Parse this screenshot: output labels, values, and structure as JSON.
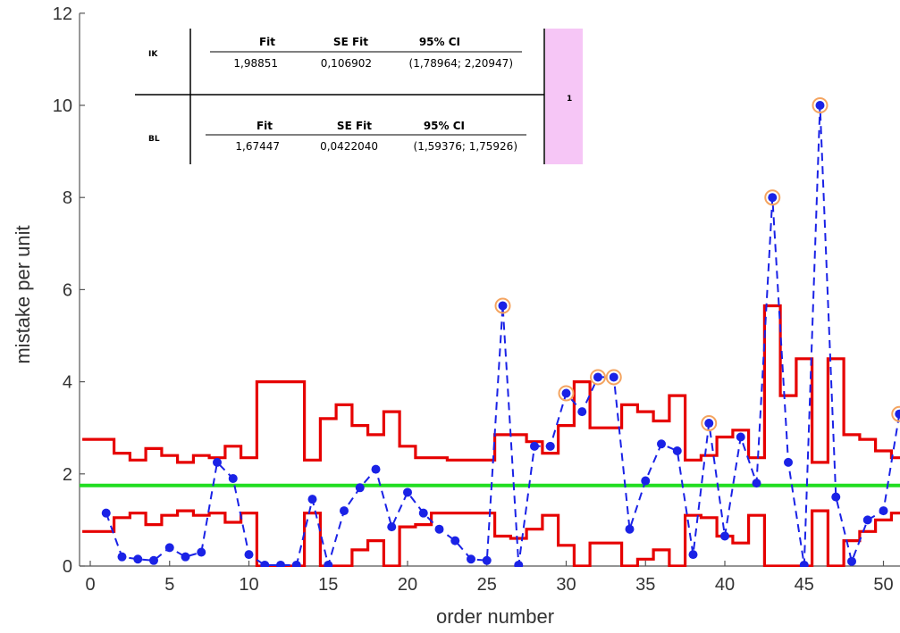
{
  "chart_data": {
    "type": "line",
    "xlabel": "order number",
    "ylabel": "mistake per unit",
    "xlim": [
      -0.5,
      51.3
    ],
    "ylim": [
      0,
      12
    ],
    "x_ticks": [
      "0",
      "5",
      "10",
      "15",
      "20",
      "25",
      "30",
      "35",
      "40",
      "45",
      "50"
    ],
    "y_ticks": [
      "0",
      "2",
      "4",
      "6",
      "8",
      "10",
      "12"
    ],
    "center_line": {
      "value": 1.75,
      "color": "#22dd22"
    },
    "data_series": {
      "color": "#1a22e6",
      "points": [
        [
          1,
          1.15
        ],
        [
          2,
          0.2
        ],
        [
          3,
          0.15
        ],
        [
          4,
          0.12
        ],
        [
          5,
          0.4
        ],
        [
          6,
          0.2
        ],
        [
          7,
          0.3
        ],
        [
          8,
          2.25
        ],
        [
          9,
          1.9
        ],
        [
          10,
          0.25
        ],
        [
          11,
          0.02
        ],
        [
          12,
          0.02
        ],
        [
          13,
          0.02
        ],
        [
          14,
          1.45
        ],
        [
          15,
          0.02
        ],
        [
          16,
          1.2
        ],
        [
          17,
          1.7
        ],
        [
          18,
          2.1
        ],
        [
          19,
          0.85
        ],
        [
          20,
          1.6
        ],
        [
          21,
          1.15
        ],
        [
          22,
          0.8
        ],
        [
          23,
          0.55
        ],
        [
          24,
          0.15
        ],
        [
          25,
          0.12
        ],
        [
          26,
          5.65
        ],
        [
          27,
          0.02
        ],
        [
          28,
          2.6
        ],
        [
          29,
          2.6
        ],
        [
          30,
          3.75
        ],
        [
          31,
          3.35
        ],
        [
          32,
          4.1
        ],
        [
          33,
          4.1
        ],
        [
          34,
          0.8
        ],
        [
          35,
          1.85
        ],
        [
          36,
          2.65
        ],
        [
          37,
          2.5
        ],
        [
          38,
          0.25
        ],
        [
          39,
          3.1
        ],
        [
          40,
          0.65
        ],
        [
          41,
          2.8
        ],
        [
          42,
          1.8
        ],
        [
          43,
          8.0
        ],
        [
          44,
          2.25
        ],
        [
          45,
          0.02
        ],
        [
          46,
          10.0
        ],
        [
          47,
          1.5
        ],
        [
          48,
          0.1
        ],
        [
          49,
          1.0
        ],
        [
          50,
          1.2
        ],
        [
          51,
          3.3
        ]
      ],
      "out_of_control_index": [
        26,
        30,
        32,
        33,
        39,
        43,
        46,
        51
      ],
      "highlight_color": "#f4a460"
    },
    "ucl": {
      "color": "#e60000",
      "values": [
        2.75,
        2.75,
        2.45,
        2.3,
        2.55,
        2.4,
        2.25,
        2.4,
        2.35,
        2.6,
        2.35,
        4.0,
        4.0,
        4.0,
        2.3,
        3.2,
        3.5,
        3.05,
        2.85,
        3.35,
        2.6,
        2.35,
        2.35,
        2.3,
        2.3,
        2.3,
        2.85,
        2.85,
        2.7,
        2.45,
        3.05,
        4.0,
        3.0,
        3.0,
        3.5,
        3.35,
        3.15,
        3.7,
        2.3,
        2.4,
        2.8,
        2.95,
        2.35,
        5.65,
        3.7,
        4.5,
        2.25,
        4.5,
        2.85,
        2.75,
        2.5,
        2.35
      ]
    },
    "lcl": {
      "color": "#e60000",
      "values": [
        0.75,
        0.75,
        1.05,
        1.15,
        0.9,
        1.1,
        1.2,
        1.1,
        1.15,
        0.95,
        1.15,
        0.0,
        0.0,
        0.0,
        1.15,
        0.0,
        0.0,
        0.35,
        0.55,
        0.0,
        0.85,
        0.9,
        1.15,
        1.15,
        1.15,
        1.15,
        0.65,
        0.6,
        0.8,
        1.1,
        0.45,
        0.0,
        0.5,
        0.5,
        0.0,
        0.15,
        0.35,
        0.0,
        1.1,
        1.05,
        0.65,
        0.5,
        1.1,
        0.0,
        0.0,
        0.0,
        1.2,
        0.0,
        0.55,
        0.75,
        1.0,
        1.15
      ]
    }
  },
  "fit_table": {
    "groups": [
      {
        "label": "IK",
        "headers": [
          "Fit",
          "SE Fit",
          "95% CI"
        ],
        "values": [
          "1,98851",
          "0,106902",
          "(1,78964; 2,20947)"
        ]
      },
      {
        "label": "BL",
        "headers": [
          "Fit",
          "SE Fit",
          "95% CI"
        ],
        "values": [
          "1,67447",
          "0,0422040",
          "(1,59376; 1,75926)"
        ]
      }
    ],
    "side_cell": "1",
    "side_color": "#f6c6f6"
  }
}
